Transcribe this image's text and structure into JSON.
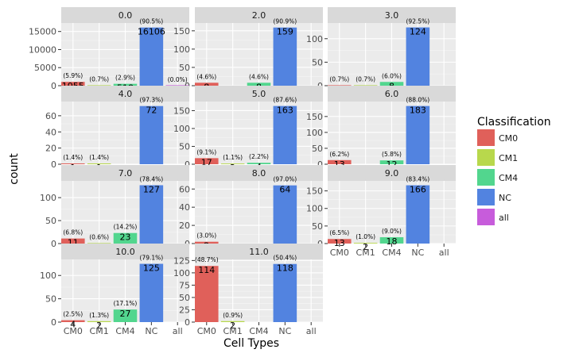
{
  "chart_data": {
    "type": "bar",
    "xlabel": "Cell Types",
    "ylabel": "count",
    "categories": [
      "CM0",
      "CM1",
      "CM4",
      "NC",
      "all"
    ],
    "legend": {
      "title": "Classification",
      "placement": "right",
      "entries": [
        "CM0",
        "CM1",
        "CM4",
        "NC",
        "all"
      ]
    },
    "colors": {
      "CM0": "#e0605a",
      "CM1": "#b8d84c",
      "CM4": "#52d68e",
      "NC": "#5283e0",
      "all": "#c75cdb"
    },
    "facets": [
      {
        "title": "0.0",
        "ylim": [
          0,
          16911
        ],
        "yticks": [
          "0",
          "5000",
          "10000",
          "15000"
        ],
        "ytick_values": [
          0,
          5000,
          10000,
          15000
        ],
        "bars": [
          {
            "cat": "CM0",
            "value": 1055,
            "label": "1055",
            "pct": "(5.9%)"
          },
          {
            "cat": "CM1",
            "value": 116,
            "label": "116",
            "pct": "(0.7%)"
          },
          {
            "cat": "CM4",
            "value": 518,
            "label": "518",
            "pct": "(2.9%)"
          },
          {
            "cat": "NC",
            "value": 16106,
            "label": "16106",
            "pct": "(90.5%)"
          },
          {
            "cat": "all",
            "value": 1,
            "label": "1",
            "pct": "(0.0%)"
          }
        ]
      },
      {
        "title": "2.0",
        "ylim": [
          0,
          167
        ],
        "yticks": [
          "0",
          "50",
          "100",
          "150"
        ],
        "ytick_values": [
          0,
          50,
          100,
          150
        ],
        "bars": [
          {
            "cat": "CM0",
            "value": 8,
            "label": "8",
            "pct": "(4.6%)"
          },
          {
            "cat": "CM4",
            "value": 8,
            "label": "8",
            "pct": "(4.6%)"
          },
          {
            "cat": "NC",
            "value": 159,
            "label": "159",
            "pct": "(90.9%)"
          }
        ]
      },
      {
        "title": "3.0",
        "ylim": [
          0,
          130
        ],
        "yticks": [
          "0",
          "50",
          "100"
        ],
        "ytick_values": [
          0,
          50,
          100
        ],
        "bars": [
          {
            "cat": "CM0",
            "value": 1,
            "label": "1",
            "pct": "(0.7%)"
          },
          {
            "cat": "CM1",
            "value": 1,
            "label": "1",
            "pct": "(0.7%)"
          },
          {
            "cat": "CM4",
            "value": 8,
            "label": "8",
            "pct": "(6.0%)"
          },
          {
            "cat": "NC",
            "value": 124,
            "label": "124",
            "pct": "(92.5%)"
          }
        ]
      },
      {
        "title": "4.0",
        "ylim": [
          0,
          75.6
        ],
        "yticks": [
          "0",
          "20",
          "40",
          "60"
        ],
        "ytick_values": [
          0,
          20,
          40,
          60
        ],
        "bars": [
          {
            "cat": "CM0",
            "value": 1,
            "label": "1",
            "pct": "(1.4%)"
          },
          {
            "cat": "CM1",
            "value": 1,
            "label": "1",
            "pct": "(1.4%)"
          },
          {
            "cat": "NC",
            "value": 72,
            "label": "72",
            "pct": "(97.3%)"
          }
        ]
      },
      {
        "title": "5.0",
        "ylim": [
          0,
          171
        ],
        "yticks": [
          "0",
          "50",
          "100",
          "150"
        ],
        "ytick_values": [
          0,
          50,
          100,
          150
        ],
        "bars": [
          {
            "cat": "CM0",
            "value": 17,
            "label": "17",
            "pct": "(9.1%)"
          },
          {
            "cat": "CM1",
            "value": 2,
            "label": "2",
            "pct": "(1.1%)"
          },
          {
            "cat": "CM4",
            "value": 4,
            "label": "4",
            "pct": "(2.2%)"
          },
          {
            "cat": "NC",
            "value": 163,
            "label": "163",
            "pct": "(87.6%)"
          }
        ]
      },
      {
        "title": "6.0",
        "ylim": [
          0,
          192
        ],
        "yticks": [
          "0",
          "50",
          "100",
          "150"
        ],
        "ytick_values": [
          0,
          50,
          100,
          150
        ],
        "bars": [
          {
            "cat": "CM0",
            "value": 13,
            "label": "13",
            "pct": "(6.2%)"
          },
          {
            "cat": "CM4",
            "value": 12,
            "label": "12",
            "pct": "(5.8%)"
          },
          {
            "cat": "NC",
            "value": 183,
            "label": "183",
            "pct": "(88.0%)"
          }
        ]
      },
      {
        "title": "7.0",
        "ylim": [
          0,
          133
        ],
        "yticks": [
          "0",
          "50",
          "100"
        ],
        "ytick_values": [
          0,
          50,
          100
        ],
        "bars": [
          {
            "cat": "CM0",
            "value": 11,
            "label": "11",
            "pct": "(6.8%)"
          },
          {
            "cat": "CM1",
            "value": 1,
            "label": "1",
            "pct": "(0.6%)"
          },
          {
            "cat": "CM4",
            "value": 23,
            "label": "23",
            "pct": "(14.2%)"
          },
          {
            "cat": "NC",
            "value": 127,
            "label": "127",
            "pct": "(78.4%)"
          }
        ]
      },
      {
        "title": "8.0",
        "ylim": [
          0,
          67.2
        ],
        "yticks": [
          "0",
          "20",
          "40",
          "60"
        ],
        "ytick_values": [
          0,
          20,
          40,
          60
        ],
        "bars": [
          {
            "cat": "CM0",
            "value": 2,
            "label": "2",
            "pct": "(3.0%)"
          },
          {
            "cat": "NC",
            "value": 64,
            "label": "64",
            "pct": "(97.0%)"
          }
        ]
      },
      {
        "title": "9.0",
        "ylim": [
          0,
          174
        ],
        "yticks": [
          "0",
          "50",
          "100",
          "150"
        ],
        "ytick_values": [
          0,
          50,
          100,
          150
        ],
        "bars": [
          {
            "cat": "CM0",
            "value": 13,
            "label": "13",
            "pct": "(6.5%)"
          },
          {
            "cat": "CM1",
            "value": 2,
            "label": "2",
            "pct": "(1.0%)"
          },
          {
            "cat": "CM4",
            "value": 18,
            "label": "18",
            "pct": "(9.0%)"
          },
          {
            "cat": "NC",
            "value": 166,
            "label": "166",
            "pct": "(83.4%)"
          }
        ]
      },
      {
        "title": "10.0",
        "ylim": [
          0,
          131
        ],
        "yticks": [
          "0",
          "50",
          "100"
        ],
        "ytick_values": [
          0,
          50,
          100
        ],
        "bars": [
          {
            "cat": "CM0",
            "value": 4,
            "label": "4",
            "pct": "(2.5%)"
          },
          {
            "cat": "CM1",
            "value": 2,
            "label": "2",
            "pct": "(1.3%)"
          },
          {
            "cat": "CM4",
            "value": 27,
            "label": "27",
            "pct": "(17.1%)"
          },
          {
            "cat": "NC",
            "value": 125,
            "label": "125",
            "pct": "(79.1%)"
          }
        ]
      },
      {
        "title": "11.0",
        "ylim": [
          0,
          124
        ],
        "yticks": [
          "0",
          "25",
          "50",
          "75",
          "100",
          "125"
        ],
        "ytick_values": [
          0,
          25,
          50,
          75,
          100,
          125
        ],
        "bars": [
          {
            "cat": "CM0",
            "value": 114,
            "label": "114",
            "pct": "(48.7%)"
          },
          {
            "cat": "CM1",
            "value": 2,
            "label": "2",
            "pct": "(0.9%)"
          },
          {
            "cat": "NC",
            "value": 118,
            "label": "118",
            "pct": "(50.4%)"
          }
        ]
      }
    ]
  }
}
